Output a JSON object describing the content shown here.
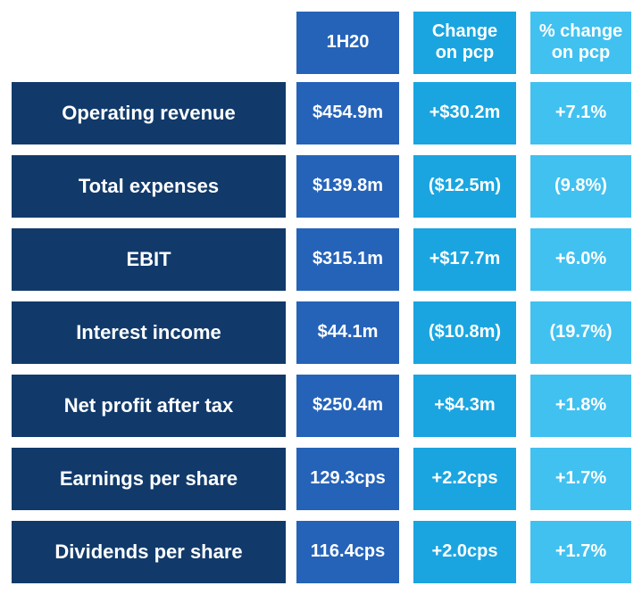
{
  "headers": [
    "1H20",
    "Change\non pcp",
    "% change\non pcp"
  ],
  "rows": [
    {
      "label": "Operating revenue",
      "value": "$454.9m",
      "change": "+$30.2m",
      "pct": "+7.1%"
    },
    {
      "label": "Total expenses",
      "value": "$139.8m",
      "change": "($12.5m)",
      "pct": "(9.8%)"
    },
    {
      "label": "EBIT",
      "value": "$315.1m",
      "change": "+$17.7m",
      "pct": "+6.0%"
    },
    {
      "label": "Interest income",
      "value": "$44.1m",
      "change": "($10.8m)",
      "pct": "(19.7%)"
    },
    {
      "label": "Net profit after tax",
      "value": "$250.4m",
      "change": "+$4.3m",
      "pct": "+1.8%"
    },
    {
      "label": "Earnings per share",
      "value": "129.3cps",
      "change": "+2.2cps",
      "pct": "+1.7%"
    },
    {
      "label": "Dividends per share",
      "value": "116.4cps",
      "change": "+2.0cps",
      "pct": "+1.7%"
    }
  ],
  "colors": {
    "label_bg": "#113a6b",
    "col1_bg": "#2563b8",
    "col2_bg": "#1aa5e0",
    "col3_bg": "#41c1f0",
    "text": "#ffffff"
  }
}
